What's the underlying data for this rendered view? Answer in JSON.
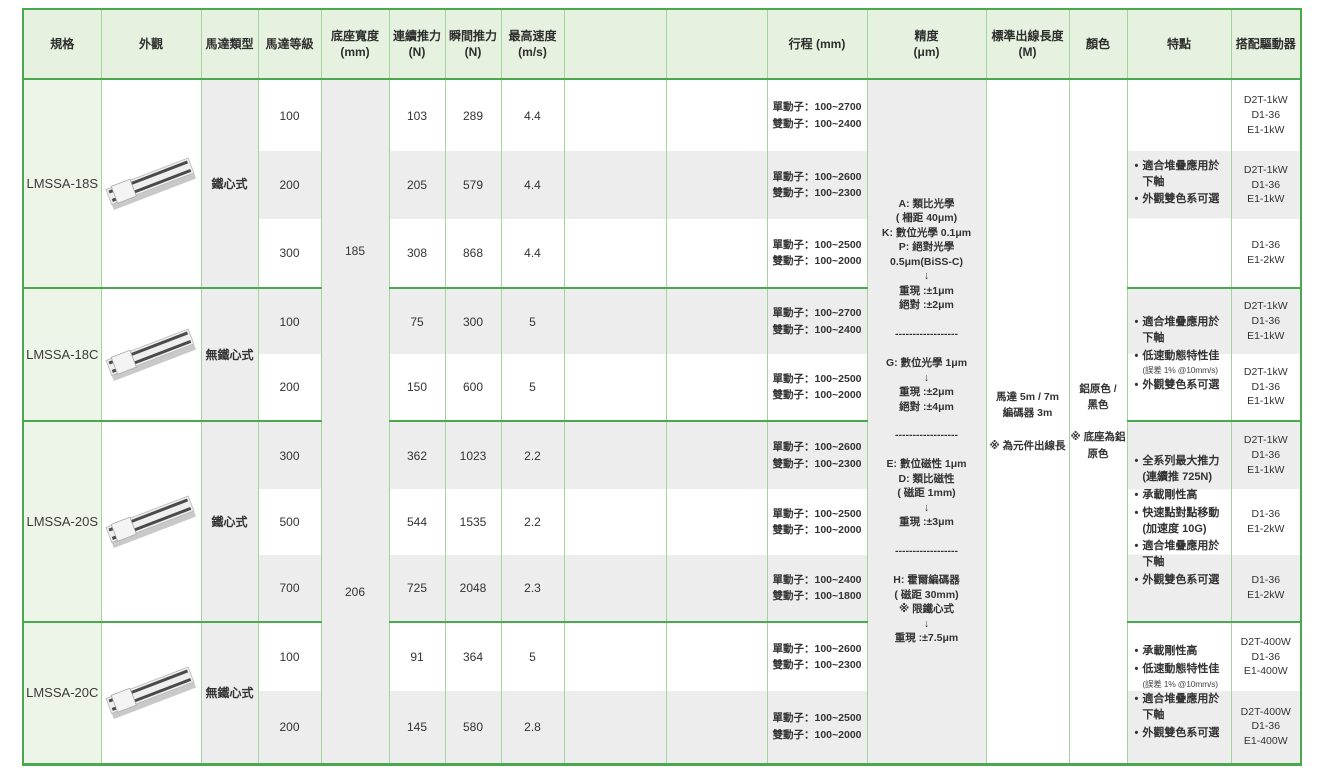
{
  "colors": {
    "border_strong": "#4aa84e",
    "border_light": "#a2d49c",
    "header_bg": "#e7f1df",
    "spec_column_bg": "#ecf5e7",
    "row_band_grey": "#ededed"
  },
  "header": {
    "spec": "規格",
    "appearance": "外觀",
    "motor_type": "馬達類型",
    "grade": "馬達等級",
    "base_width": "底座寬度\n(mm)",
    "cont_force": "連續推力\n(N)",
    "inst_force": "瞬間推力\n(N)",
    "max_speed": "最高速度\n(m/s)",
    "empty1": "",
    "empty2": "",
    "stroke": "行程 (mm)",
    "precision": "精度\n(μm)",
    "cable_length": "標準出線長度\n(M)",
    "color": "顏色",
    "features": "特點",
    "drivers": "搭配驅動器"
  },
  "shared": {
    "base_width_18": "185",
    "base_width_20": "206",
    "precision": "A: 類比光學\n( 柵距 40μm)\nK: 數位光學 0.1μm\nP: 絕對光學\n0.5μm(BiSS-C)\n↓\n重現 :±1μm\n絕對 :±2μm\n\n------------------\n\nG: 數位光學 1μm\n↓\n重現 :±2μm\n絕對 :±4μm\n\n------------------\n\nE: 數位磁性 1μm\nD: 類比磁性\n( 磁距 1mm)\n↓\n重現 :±3μm\n\n------------------\n\nH: 霍爾編碼器\n( 磁距 30mm)\n※ 限鐵心式\n↓\n重現 :±7.5μm",
    "cable_length": "馬達 5m / 7m\n編碼器 3m\n\n※ 為元件出線長",
    "color": "鋁原色 /\n黑色\n\n※ 底座為鋁\n原色"
  },
  "sections": [
    {
      "model": "LMSSA-18S",
      "motor_type": "鐵心式",
      "features": [
        {
          "text": "適合堆疊應用於\n下軸"
        },
        {
          "text": "外觀雙色系可選"
        }
      ],
      "rows": [
        {
          "grade": "100",
          "cont": "103",
          "inst": "289",
          "speed": "4.4",
          "stroke": "單動子：100~2700\n雙動子：100~2400",
          "driver": "D2T-1kW\nD1-36\nE1-1kW"
        },
        {
          "grade": "200",
          "cont": "205",
          "inst": "579",
          "speed": "4.4",
          "stroke": "單動子：100~2600\n雙動子：100~2300",
          "driver": "D2T-1kW\nD1-36\nE1-1kW"
        },
        {
          "grade": "300",
          "cont": "308",
          "inst": "868",
          "speed": "4.4",
          "stroke": "單動子：100~2500\n雙動子：100~2000",
          "driver": "D1-36\nE1-2kW"
        }
      ]
    },
    {
      "model": "LMSSA-18C",
      "motor_type": "無鐵心式",
      "features": [
        {
          "text": "適合堆疊應用於\n下軸"
        },
        {
          "text": "低速動態特性佳",
          "note": "(誤差 1% @10mm/s)"
        },
        {
          "text": "外觀雙色系可選"
        }
      ],
      "rows": [
        {
          "grade": "100",
          "cont": "75",
          "inst": "300",
          "speed": "5",
          "stroke": "單動子：100~2700\n雙動子：100~2400",
          "driver": "D2T-1kW\nD1-36\nE1-1kW"
        },
        {
          "grade": "200",
          "cont": "150",
          "inst": "600",
          "speed": "5",
          "stroke": "單動子：100~2500\n雙動子：100~2000",
          "driver": "D2T-1kW\nD1-36\nE1-1kW"
        }
      ]
    },
    {
      "model": "LMSSA-20S",
      "motor_type": "鐵心式",
      "features": [
        {
          "text": "全系列最大推力\n(連續推 725N)"
        },
        {
          "text": "承載剛性高"
        },
        {
          "text": "快速點對點移動\n(加速度 10G)"
        },
        {
          "text": "適合堆疊應用於\n下軸"
        },
        {
          "text": "外觀雙色系可選"
        }
      ],
      "rows": [
        {
          "grade": "300",
          "cont": "362",
          "inst": "1023",
          "speed": "2.2",
          "stroke": "單動子：100~2600\n雙動子：100~2300",
          "driver": "D2T-1kW\nD1-36\nE1-1kW"
        },
        {
          "grade": "500",
          "cont": "544",
          "inst": "1535",
          "speed": "2.2",
          "stroke": "單動子：100~2500\n雙動子：100~2000",
          "driver": "D1-36\nE1-2kW"
        },
        {
          "grade": "700",
          "cont": "725",
          "inst": "2048",
          "speed": "2.3",
          "stroke": "單動子：100~2400\n雙動子：100~1800",
          "driver": "D1-36\nE1-2kW"
        }
      ]
    },
    {
      "model": "LMSSA-20C",
      "motor_type": "無鐵心式",
      "features": [
        {
          "text": "承載剛性高"
        },
        {
          "text": "低速動態特性佳",
          "note": "(誤差 1% @10mm/s)"
        },
        {
          "text": "適合堆疊應用於\n下軸"
        },
        {
          "text": "外觀雙色系可選"
        }
      ],
      "rows": [
        {
          "grade": "100",
          "cont": "91",
          "inst": "364",
          "speed": "5",
          "stroke": "單動子：100~2600\n雙動子：100~2300",
          "driver": "D2T-400W\nD1-36\nE1-400W"
        },
        {
          "grade": "200",
          "cont": "145",
          "inst": "580",
          "speed": "2.8",
          "stroke": "單動子：100~2500\n雙動子：100~2000",
          "driver": "D2T-400W\nD1-36\nE1-400W"
        }
      ]
    }
  ]
}
